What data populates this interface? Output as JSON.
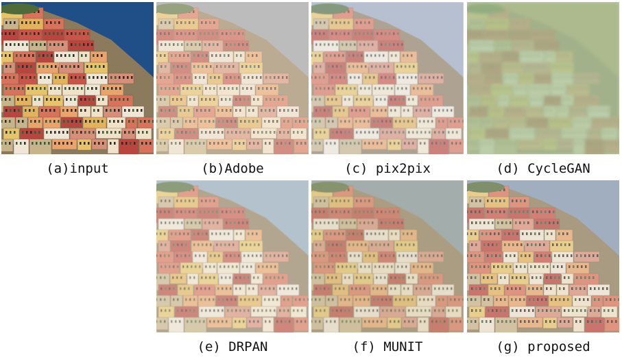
{
  "figure": {
    "panels": [
      {
        "id": "a",
        "caption": "(a)input",
        "style": "input",
        "sea": "#1f4f86",
        "tint": "#ffffff",
        "tint_opacity": 0.0,
        "blur": 0
      },
      {
        "id": "b",
        "caption": "(b)Adobe",
        "style": "adobe",
        "sea": "#8e9aa6",
        "tint": "#f3e6d8",
        "tint_opacity": 0.45,
        "blur": 0
      },
      {
        "id": "c",
        "caption": "(c) pix2pix",
        "style": "pix2pix",
        "sea": "#9aa7bd",
        "tint": "#eef0f6",
        "tint_opacity": 0.35,
        "blur": 0.4
      },
      {
        "id": "d",
        "caption": "(d) CycleGAN",
        "style": "cyclegan",
        "sea": "#b79b6c",
        "tint": "#a9c49a",
        "tint_opacity": 0.75,
        "blur": 2.2
      },
      {
        "id": "e",
        "caption": "(e) DRPAN",
        "style": "drpan",
        "sea": "#8ea6c0",
        "tint": "#f2efe6",
        "tint_opacity": 0.38,
        "blur": 0.5
      },
      {
        "id": "f",
        "caption": "(f) MUNIT",
        "style": "munit",
        "sea": "#7f95a3",
        "tint": "#d9d3b8",
        "tint_opacity": 0.4,
        "blur": 0.6
      },
      {
        "id": "g",
        "caption": "(g) proposed",
        "style": "proposed",
        "sea": "#7e97b4",
        "tint": "#f0e4da",
        "tint_opacity": 0.3,
        "blur": 0
      }
    ]
  }
}
